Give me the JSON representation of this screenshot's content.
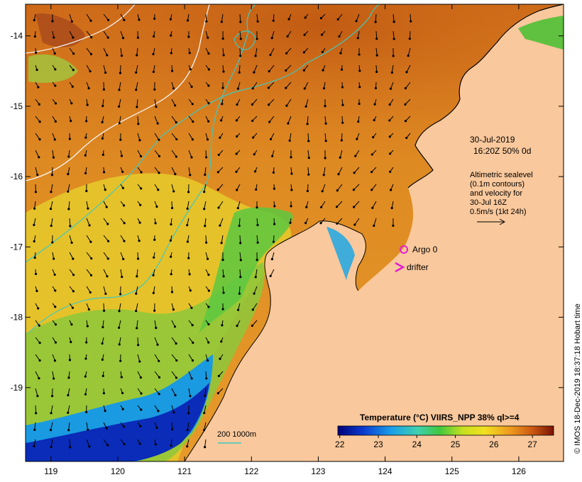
{
  "map": {
    "lat_ticks": [
      "-14",
      "-15",
      "-16",
      "-17",
      "-18",
      "-19"
    ],
    "lon_ticks": [
      "119",
      "120",
      "121",
      "122",
      "123",
      "124",
      "125",
      "126"
    ],
    "lat_range": [
      -20.05,
      -13.55
    ],
    "lon_range": [
      118.62,
      126.67
    ]
  },
  "annotations": {
    "date": "30-Jul-2019",
    "time": "16:20Z  50% 0d",
    "sealevel_lines": [
      "Altimetric sealevel",
      "(0.1m contours)",
      "and velocity for",
      "30-Jul 16Z",
      "0.5m/s (1kt 24h)"
    ],
    "argo_label": "Argo 0",
    "drifter_label": "drifter",
    "scale_label": "200  1000m"
  },
  "colorbar": {
    "title": "Temperature (°C) VIIRS_NPP 38% ql>=4",
    "ticks": [
      "22",
      "23",
      "24",
      "25",
      "26",
      "27"
    ],
    "range": [
      21.95,
      27.55
    ]
  },
  "credit": "© IMOS 18-Dec-2019 18:37:18 Hobart time",
  "colors": {
    "land": "#f9c89c",
    "argo": "#e020d0",
    "drifter": "#e020d0",
    "isobath": "#40c8c0",
    "contour": "#f0f0f0"
  }
}
